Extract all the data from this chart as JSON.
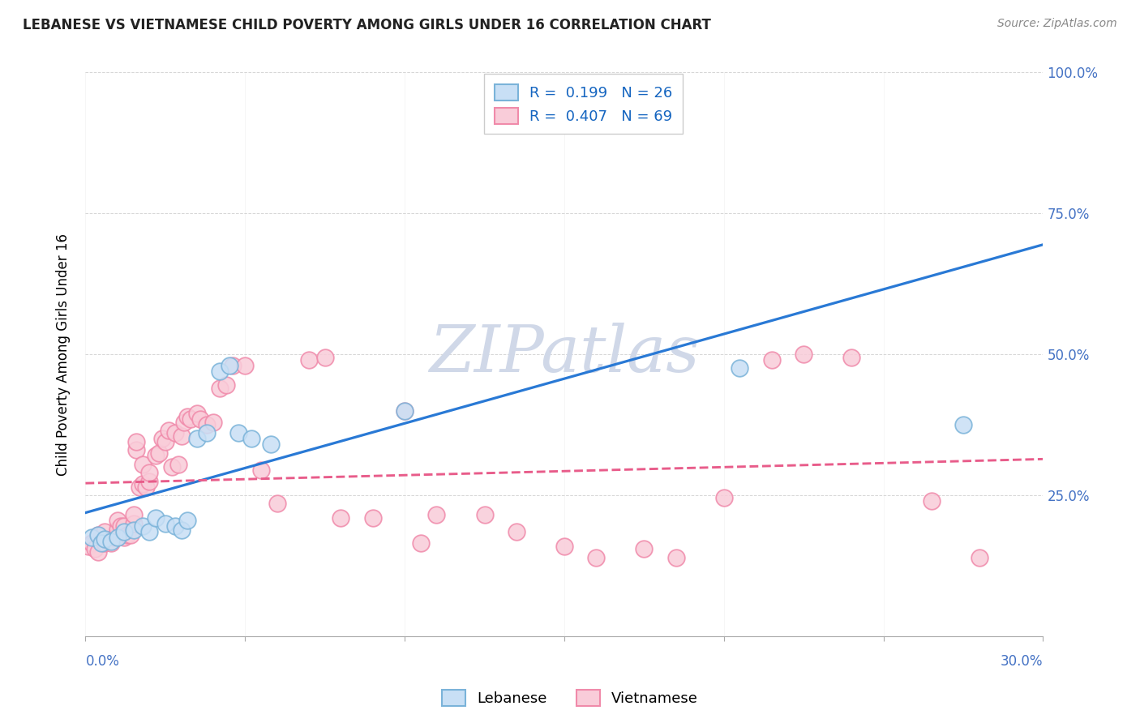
{
  "title": "LEBANESE VS VIETNAMESE CHILD POVERTY AMONG GIRLS UNDER 16 CORRELATION CHART",
  "source": "Source: ZipAtlas.com",
  "ylabel": "Child Poverty Among Girls Under 16",
  "xmin": 0.0,
  "xmax": 0.3,
  "ymin": 0.0,
  "ymax": 1.0,
  "yticks": [
    0.25,
    0.5,
    0.75,
    1.0
  ],
  "ytick_labels": [
    "25.0%",
    "50.0%",
    "75.0%",
    "100.0%"
  ],
  "xtick_left_label": "0.0%",
  "xtick_right_label": "30.0%",
  "watermark": "ZIPatlas",
  "legend_line1": "R =  0.199   N = 26",
  "legend_line2": "R =  0.407   N = 69",
  "leb_face": "#c8dff5",
  "leb_edge": "#7ab3d9",
  "viet_face": "#f9ccd9",
  "viet_edge": "#f08aaa",
  "leb_trend": "#2979d5",
  "viet_trend": "#e85c8a",
  "lebanese_x": [
    0.002,
    0.004,
    0.005,
    0.006,
    0.008,
    0.01,
    0.012,
    0.015,
    0.018,
    0.02,
    0.022,
    0.025,
    0.028,
    0.03,
    0.032,
    0.035,
    0.038,
    0.042,
    0.045,
    0.048,
    0.052,
    0.058,
    0.1,
    0.14,
    0.205,
    0.275
  ],
  "lebanese_y": [
    0.175,
    0.18,
    0.165,
    0.172,
    0.168,
    0.175,
    0.185,
    0.188,
    0.195,
    0.185,
    0.21,
    0.2,
    0.195,
    0.188,
    0.205,
    0.35,
    0.36,
    0.47,
    0.48,
    0.36,
    0.35,
    0.34,
    0.4,
    0.97,
    0.475,
    0.375
  ],
  "vietnamese_x": [
    0.001,
    0.002,
    0.003,
    0.004,
    0.004,
    0.005,
    0.006,
    0.006,
    0.007,
    0.008,
    0.009,
    0.01,
    0.01,
    0.011,
    0.012,
    0.012,
    0.013,
    0.014,
    0.015,
    0.015,
    0.016,
    0.016,
    0.017,
    0.018,
    0.018,
    0.019,
    0.02,
    0.02,
    0.022,
    0.023,
    0.024,
    0.025,
    0.026,
    0.027,
    0.028,
    0.029,
    0.03,
    0.031,
    0.032,
    0.033,
    0.035,
    0.036,
    0.038,
    0.04,
    0.042,
    0.044,
    0.046,
    0.05,
    0.055,
    0.06,
    0.07,
    0.075,
    0.08,
    0.09,
    0.1,
    0.105,
    0.11,
    0.125,
    0.135,
    0.15,
    0.16,
    0.175,
    0.185,
    0.2,
    0.215,
    0.225,
    0.24,
    0.265,
    0.28
  ],
  "vietnamese_y": [
    0.16,
    0.165,
    0.155,
    0.15,
    0.18,
    0.175,
    0.165,
    0.185,
    0.17,
    0.165,
    0.175,
    0.19,
    0.205,
    0.195,
    0.175,
    0.195,
    0.18,
    0.18,
    0.2,
    0.215,
    0.33,
    0.345,
    0.265,
    0.27,
    0.305,
    0.265,
    0.275,
    0.29,
    0.32,
    0.325,
    0.35,
    0.345,
    0.365,
    0.3,
    0.36,
    0.305,
    0.355,
    0.38,
    0.39,
    0.385,
    0.395,
    0.385,
    0.375,
    0.38,
    0.44,
    0.445,
    0.48,
    0.48,
    0.295,
    0.235,
    0.49,
    0.495,
    0.21,
    0.21,
    0.4,
    0.165,
    0.215,
    0.215,
    0.185,
    0.16,
    0.14,
    0.155,
    0.14,
    0.245,
    0.49,
    0.5,
    0.495,
    0.24,
    0.14
  ]
}
